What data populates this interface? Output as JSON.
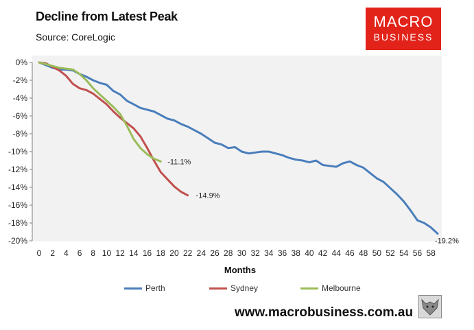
{
  "header": {
    "title": "Decline from Latest Peak",
    "subtitle": "Source: CoreLogic"
  },
  "logo": {
    "line1": "MACRO",
    "line2": "BUSINESS",
    "color": "#e2231a"
  },
  "footer": {
    "url": "www.macrobusiness.com.au",
    "logo_icon": "wolf-icon"
  },
  "chart_data": {
    "type": "line",
    "title": "Decline from Latest Peak",
    "subtitle": "Source: CoreLogic",
    "xlabel": "Months",
    "ylabel": "",
    "xlim": [
      0,
      59
    ],
    "ylim": [
      -20,
      0
    ],
    "xticks": [
      0,
      2,
      4,
      6,
      8,
      10,
      12,
      14,
      16,
      18,
      20,
      22,
      24,
      26,
      28,
      30,
      32,
      34,
      36,
      38,
      40,
      42,
      44,
      46,
      48,
      50,
      52,
      54,
      56,
      58
    ],
    "yticks": [
      0,
      -2,
      -4,
      -6,
      -8,
      -10,
      -12,
      -14,
      -16,
      -18,
      -20
    ],
    "ytick_labels": [
      "0%",
      "-2%",
      "-4%",
      "-6%",
      "-8%",
      "-10%",
      "-12%",
      "-14%",
      "-16%",
      "-18%",
      "-20%"
    ],
    "grid": false,
    "plot_background": "#f2f2f2",
    "legend": "bottom",
    "series": [
      {
        "name": "Perth",
        "color": "#4a7ebb",
        "x": [
          0,
          1,
          2,
          3,
          4,
          5,
          6,
          7,
          8,
          9,
          10,
          11,
          12,
          13,
          14,
          15,
          16,
          17,
          18,
          19,
          20,
          21,
          22,
          23,
          24,
          25,
          26,
          27,
          28,
          29,
          30,
          31,
          32,
          33,
          34,
          35,
          36,
          37,
          38,
          39,
          40,
          41,
          42,
          43,
          44,
          45,
          46,
          47,
          48,
          49,
          50,
          51,
          52,
          53,
          54,
          55,
          56,
          57,
          58,
          59
        ],
        "values": [
          0,
          -0.3,
          -0.6,
          -0.8,
          -0.8,
          -0.9,
          -1.3,
          -1.6,
          -2.0,
          -2.3,
          -2.5,
          -3.2,
          -3.6,
          -4.3,
          -4.7,
          -5.1,
          -5.3,
          -5.5,
          -5.9,
          -6.3,
          -6.5,
          -6.9,
          -7.2,
          -7.6,
          -8.0,
          -8.5,
          -9.0,
          -9.2,
          -9.6,
          -9.5,
          -10.0,
          -10.2,
          -10.1,
          -10.0,
          -10.0,
          -10.2,
          -10.4,
          -10.7,
          -10.9,
          -11.0,
          -11.2,
          -11.0,
          -11.5,
          -11.6,
          -11.7,
          -11.3,
          -11.1,
          -11.5,
          -11.8,
          -12.4,
          -13.0,
          -13.4,
          -14.1,
          -14.8,
          -15.6,
          -16.6,
          -17.7,
          -18.0,
          -18.5,
          -19.2
        ],
        "end_label": "-19.2%"
      },
      {
        "name": "Sydney",
        "color": "#c0504d",
        "x": [
          0,
          1,
          2,
          3,
          4,
          5,
          6,
          7,
          8,
          9,
          10,
          11,
          12,
          13,
          14,
          15,
          16,
          17,
          18,
          19,
          20,
          21,
          22
        ],
        "values": [
          0,
          -0.1,
          -0.5,
          -0.9,
          -1.5,
          -2.4,
          -2.9,
          -3.1,
          -3.5,
          -4.1,
          -4.7,
          -5.5,
          -6.2,
          -6.8,
          -7.4,
          -8.3,
          -9.6,
          -11.0,
          -12.3,
          -13.1,
          -13.9,
          -14.5,
          -14.9
        ],
        "end_label": "-14.9%"
      },
      {
        "name": "Melbourne",
        "color": "#9bbb59",
        "x": [
          0,
          1,
          2,
          3,
          4,
          5,
          6,
          7,
          8,
          9,
          10,
          11,
          12,
          13,
          14,
          15,
          16,
          17,
          18
        ],
        "values": [
          0,
          -0.2,
          -0.4,
          -0.6,
          -0.7,
          -0.8,
          -1.3,
          -2.0,
          -2.9,
          -3.6,
          -4.3,
          -5.0,
          -5.8,
          -7.1,
          -8.6,
          -9.6,
          -10.3,
          -10.8,
          -11.1
        ],
        "end_label": "-11.1%"
      }
    ]
  }
}
